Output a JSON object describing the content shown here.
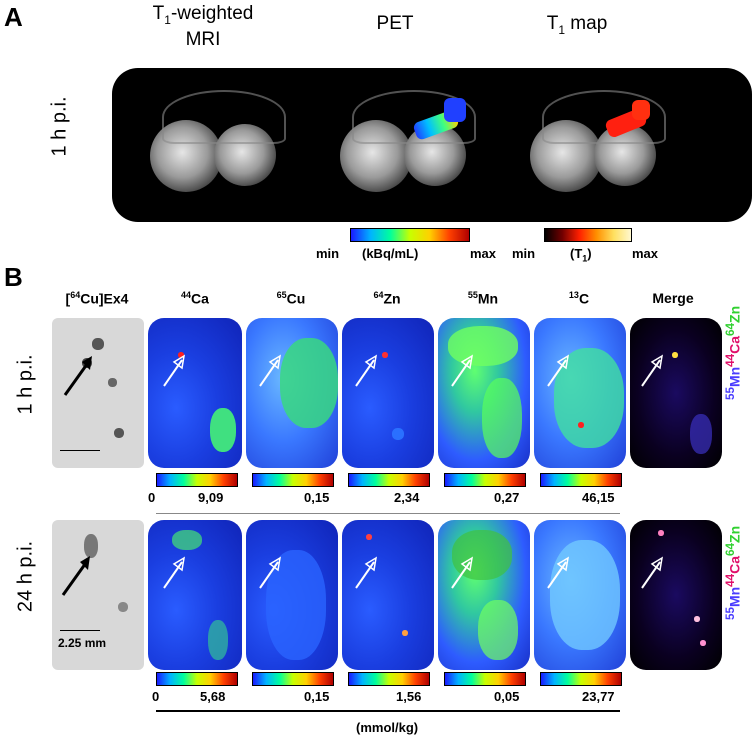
{
  "panel_a": {
    "letter": "A",
    "columns": [
      {
        "main": "T",
        "sub": "1",
        "rest": "-weighted",
        "line2": "MRI"
      },
      {
        "main": "PET"
      },
      {
        "main": "T",
        "sub": "1",
        "rest": " map"
      }
    ],
    "row_label": "1 h p.i.",
    "pet_colorbar": {
      "min": "min",
      "unit": "(kBq/mL)",
      "max": "max"
    },
    "t1_colorbar": {
      "min": "min",
      "unit_main": "(T",
      "unit_sub": "1",
      "unit_end": ")",
      "max": "max"
    }
  },
  "panel_b": {
    "letter": "B",
    "columns": [
      {
        "sup": "64",
        "name": "[",
        "tail": "Cu]Ex4",
        "pre": "["
      },
      {
        "sup": "44",
        "name": "Ca"
      },
      {
        "sup": "65",
        "name": "Cu"
      },
      {
        "sup": "64",
        "name": "Zn"
      },
      {
        "sup": "55",
        "name": "Mn"
      },
      {
        "sup": "13",
        "name": "C"
      },
      {
        "name": "Merge"
      }
    ],
    "col0_label": "Cu]Ex4",
    "col0_sup": "64",
    "rows": [
      {
        "label": "1 h p.i.",
        "values": [
          "9,09",
          "0,15",
          "2,34",
          "0,27",
          "46,15"
        ]
      },
      {
        "label": "24 h p.i.",
        "values": [
          "5,68",
          "0,15",
          "1,56",
          "0,05",
          "23,77"
        ]
      }
    ],
    "zero": "0",
    "scale_bar": "2.25 mm",
    "unit": "(mmol/kg)",
    "merge_legend": {
      "a_sup": "55",
      "a": "Mn",
      "b_sup": "44",
      "b": "Ca",
      "c_sup": "64",
      "c": "Zn"
    },
    "colors": {
      "mn": "#4a3cff",
      "ca": "#e0106a",
      "zn": "#30d030"
    }
  }
}
